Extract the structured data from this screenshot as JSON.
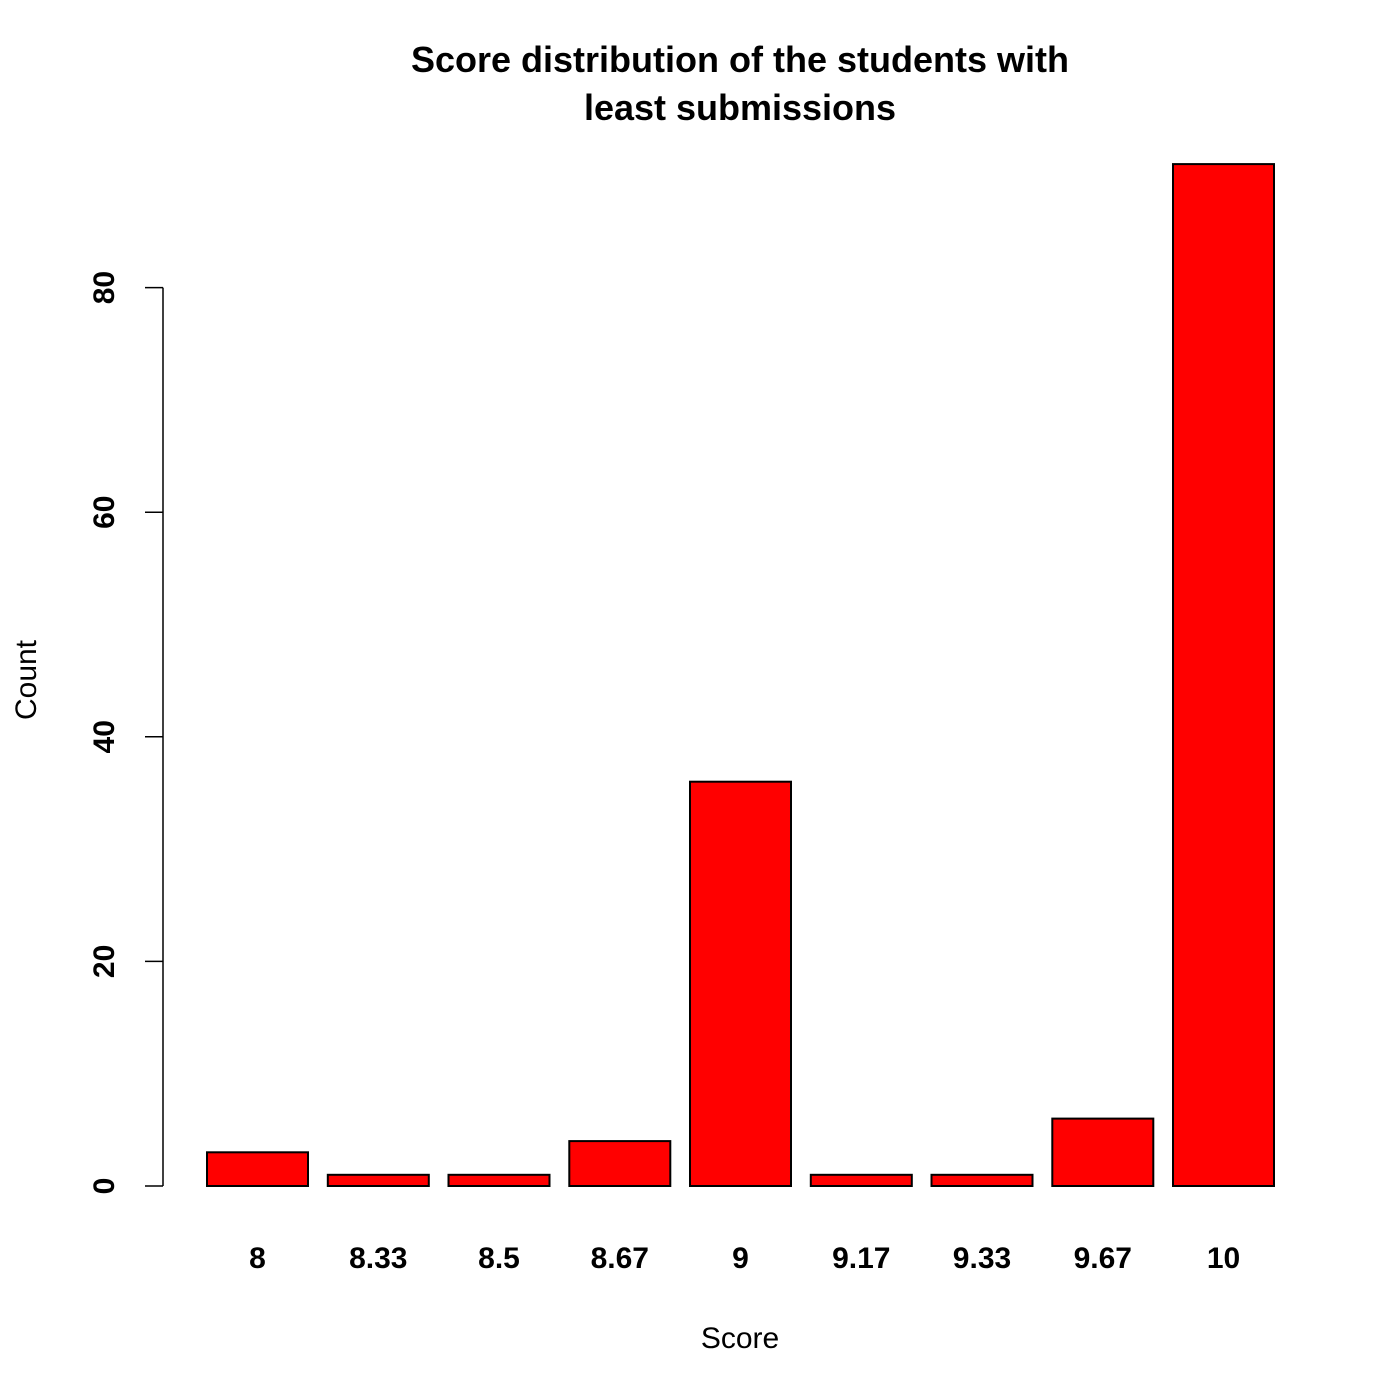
{
  "chart_data": {
    "type": "bar",
    "title_lines": [
      "Score distribution of the students with",
      "least submissions"
    ],
    "xlabel": "Score",
    "ylabel": "Count",
    "categories": [
      "8",
      "8.33",
      "8.5",
      "8.67",
      "9",
      "9.17",
      "9.33",
      "9.67",
      "10"
    ],
    "values": [
      3,
      1,
      1,
      4,
      36,
      1,
      1,
      6,
      91
    ],
    "yticks": [
      0,
      20,
      40,
      60,
      80
    ],
    "ylim": [
      0,
      91
    ],
    "grid": false,
    "bar_color": "#ff0000",
    "bar_border_color": "#000000"
  }
}
